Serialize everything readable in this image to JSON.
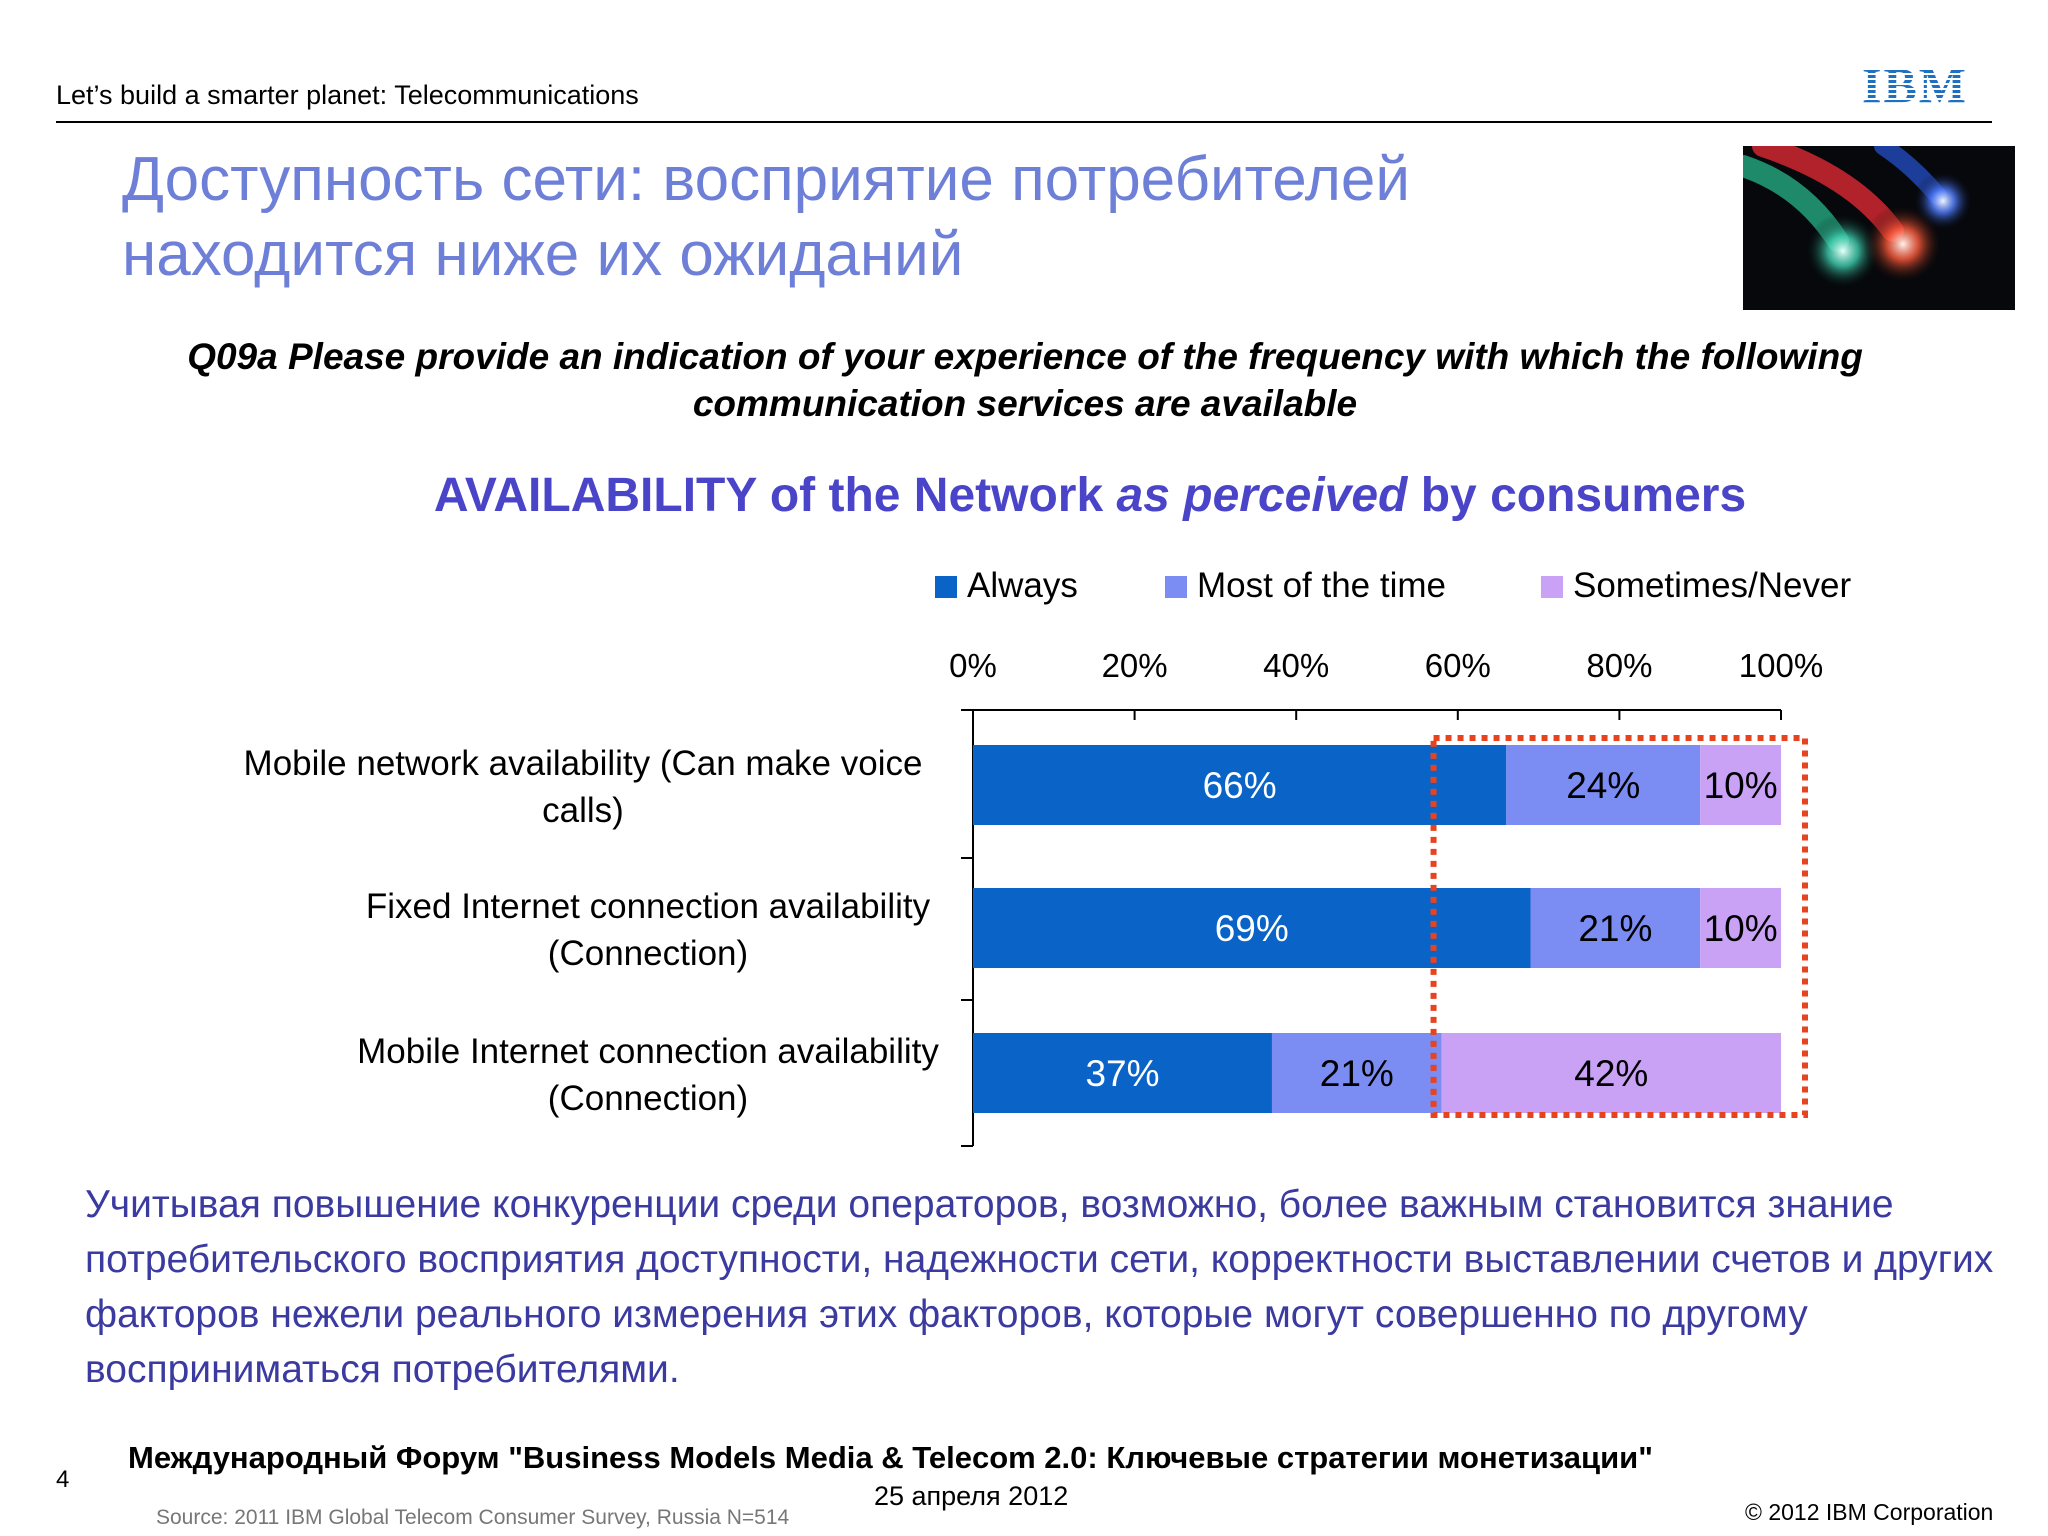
{
  "header": {
    "tagline": "Let’s build a smarter planet: Telecommunications",
    "logo_text": "IBM",
    "accent_color": "#1f70c1"
  },
  "slide": {
    "title_line1": "Доступность сети: восприятие потребителей",
    "title_line2": "находится ниже их ожиданий",
    "photo_icon": "fiber-optic-cables-photo",
    "question_line1": "Q09a Please provide an indication of your experience of the frequency with which the following",
    "question_line2": "communication services are available",
    "body_text": "Учитывая повышение конкуренции среди операторов, возможно, более важным становится знание потребительского восприятия доступности, надежности сети, корректности выставлении счетов и других факторов нежели реального измерения этих факторов, которые могут совершенно по другому восприниматься потребителями."
  },
  "chart_data": {
    "type": "bar",
    "orientation": "horizontal",
    "stacked": true,
    "title_part1": "AVAILABILITY of the Network ",
    "title_part2": "as perceived",
    "title_part3": " by consumers",
    "categories": [
      [
        "Mobile network availability (Can make voice",
        "calls)"
      ],
      [
        "Fixed Internet connection availability",
        "(Connection)"
      ],
      [
        "Mobile Internet connection availability",
        "(Connection)"
      ]
    ],
    "series": [
      {
        "name": "Always",
        "values": [
          66,
          69,
          37
        ],
        "color": "#0a64c8"
      },
      {
        "name": "Most of the time",
        "values": [
          24,
          21,
          21
        ],
        "color": "#7b8cf2"
      },
      {
        "name": "Sometimes/Never",
        "values": [
          10,
          10,
          42
        ],
        "color": "#c9a2f5"
      }
    ],
    "value_suffix": "%",
    "xlim": [
      0,
      100
    ],
    "x_ticks": [
      "0%",
      "20%",
      "40%",
      "60%",
      "80%",
      "100%"
    ],
    "legend_position": "top",
    "highlight_box": {
      "from_value": 57,
      "to_value": 100,
      "color": "#e8421e",
      "style": "dotted"
    }
  },
  "footer": {
    "page_number": "4",
    "forum": "Международный Форум \"Business Models Media & Telecom 2.0: Ключевые стратегии монетизации\"",
    "date": "25 апреля 2012",
    "source": "Source: 2011 IBM Global Telecom Consumer Survey, Russia N=514",
    "copyright": "© 2012 IBM Corporation"
  }
}
